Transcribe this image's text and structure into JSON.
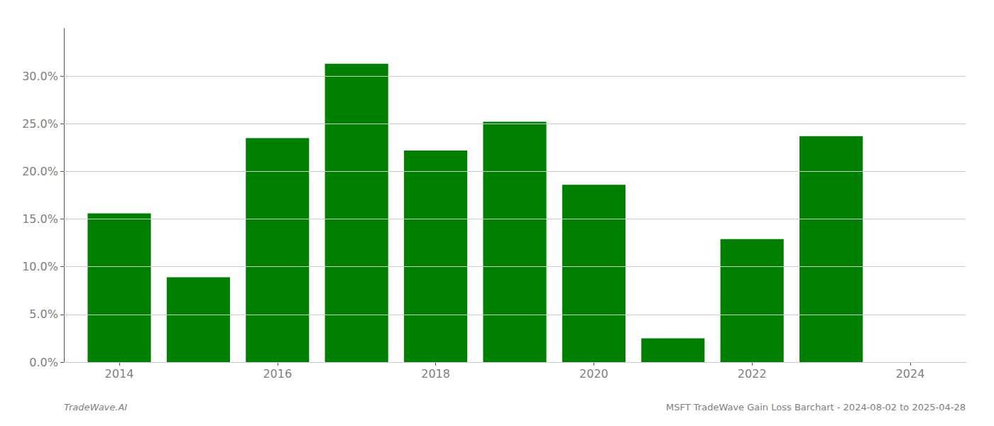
{
  "chart_data": {
    "type": "bar",
    "x": [
      2014,
      2015,
      2016,
      2017,
      2018,
      2019,
      2020,
      2021,
      2022,
      2023,
      2024
    ],
    "values": [
      0.156,
      0.089,
      0.235,
      0.313,
      0.222,
      0.252,
      0.186,
      0.025,
      0.129,
      0.237,
      0.0
    ],
    "color": "#008000",
    "xlim": [
      2013.3,
      2024.7
    ],
    "xticks": [
      2014,
      2016,
      2018,
      2020,
      2022,
      2024
    ],
    "ylim": [
      0,
      0.35
    ],
    "yticks": [
      {
        "value": 0.0,
        "label": "0.0%"
      },
      {
        "value": 0.05,
        "label": "5.0%"
      },
      {
        "value": 0.1,
        "label": "10.0%"
      },
      {
        "value": 0.15,
        "label": "15.0%"
      },
      {
        "value": 0.2,
        "label": "20.0%"
      },
      {
        "value": 0.25,
        "label": "25.0%"
      },
      {
        "value": 0.3,
        "label": "30.0%"
      }
    ],
    "grid": true,
    "annotations": [
      "TradeWave.AI",
      "MSFT TradeWave Gain Loss Barchart - 2024-08-02 to 2025-04-28"
    ]
  }
}
